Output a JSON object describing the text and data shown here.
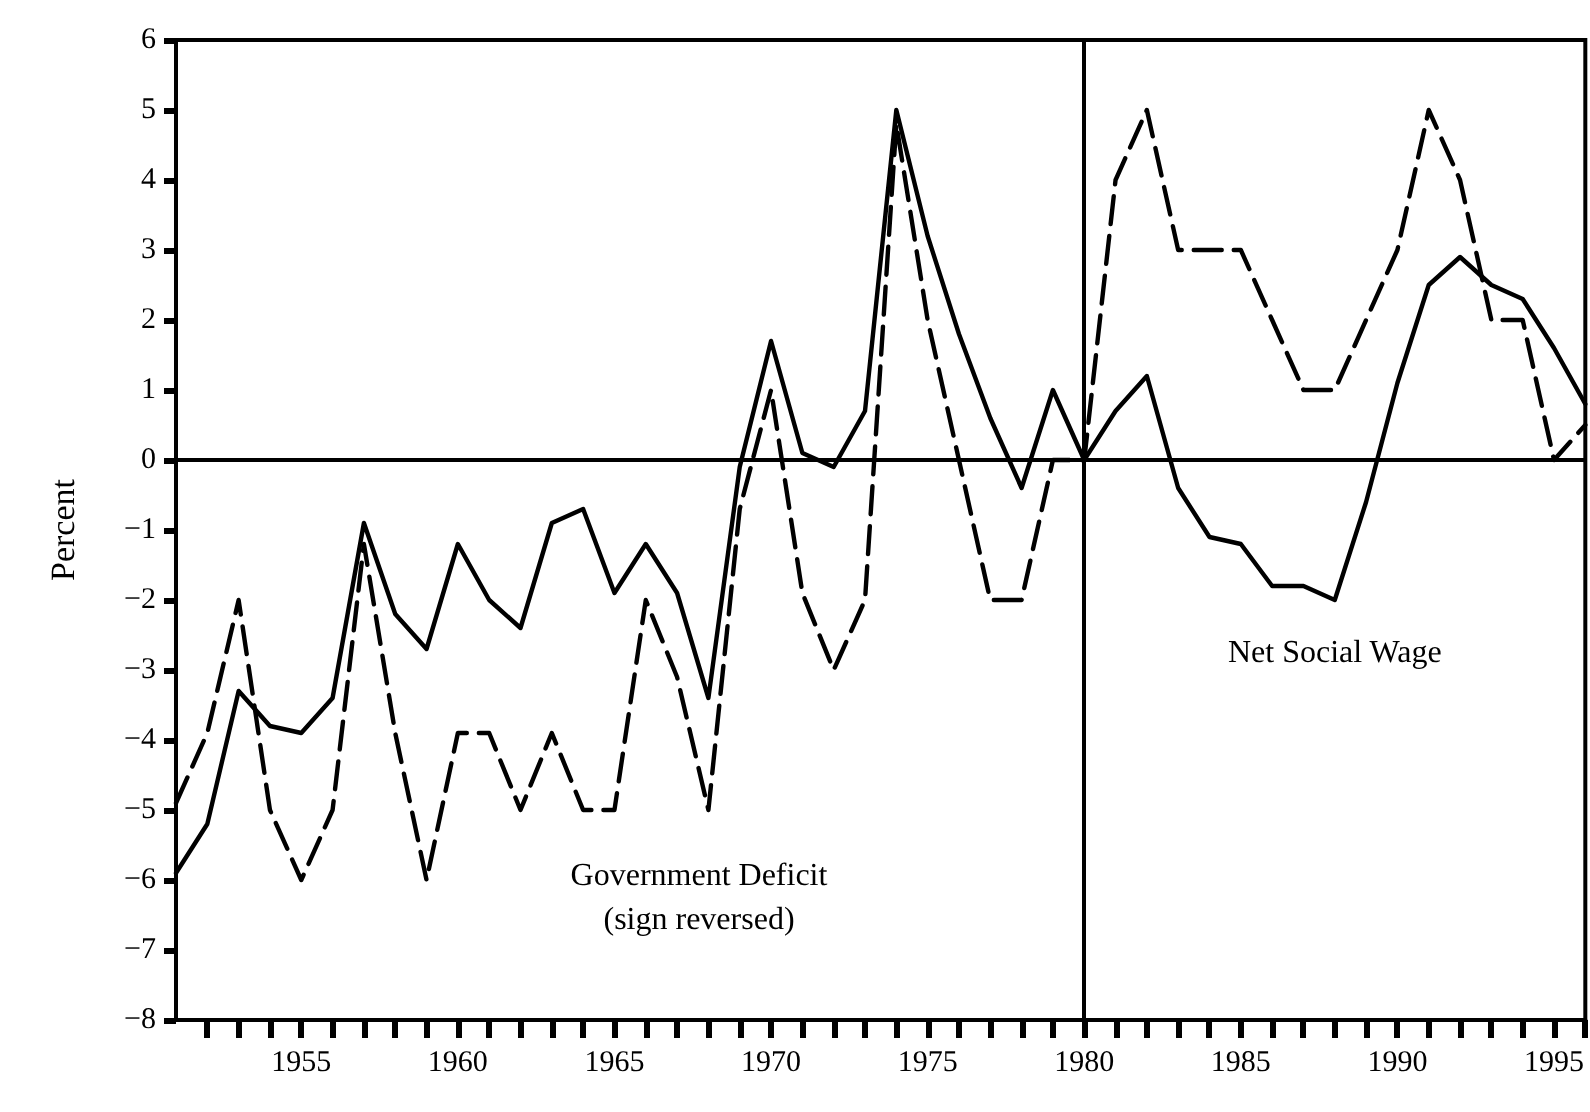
{
  "chart_data": {
    "type": "line",
    "ylabel": "Percent",
    "x": [
      1951,
      1952,
      1953,
      1954,
      1955,
      1956,
      1957,
      1958,
      1959,
      1960,
      1961,
      1962,
      1963,
      1964,
      1965,
      1966,
      1967,
      1968,
      1969,
      1970,
      1971,
      1972,
      1973,
      1974,
      1975,
      1976,
      1977,
      1978,
      1979,
      1980,
      1981,
      1982,
      1983,
      1984,
      1985,
      1986,
      1987,
      1988,
      1989,
      1990,
      1991,
      1992,
      1993,
      1994,
      1995,
      1996
    ],
    "series": [
      {
        "name": "Net Social Wage",
        "color": "#000000",
        "line_style": "solid",
        "values": [
          -5.9,
          -5.2,
          -3.3,
          -3.8,
          -3.9,
          -3.4,
          -0.9,
          -2.2,
          -2.7,
          -1.2,
          -2.0,
          -2.4,
          -0.9,
          -0.7,
          -1.9,
          -1.2,
          -1.9,
          -3.4,
          -0.1,
          1.7,
          0.1,
          -0.1,
          0.7,
          5.0,
          3.2,
          1.8,
          0.6,
          -0.4,
          1.0,
          0.0,
          0.7,
          1.2,
          -0.4,
          -1.1,
          -1.2,
          -1.8,
          -1.8,
          -2.0,
          -0.6,
          1.1,
          2.5,
          2.9,
          2.5,
          2.3,
          1.6,
          0.8
        ]
      },
      {
        "name": "Government Deficit\n(sign reversed)",
        "color": "#000000",
        "line_style": "dashed",
        "values": [
          -4.9,
          -3.9,
          -2.0,
          -5.0,
          -6.0,
          -5.0,
          -1.2,
          -3.9,
          -6.0,
          -3.9,
          -3.9,
          -5.0,
          -3.9,
          -5.0,
          -5.0,
          -2.0,
          -3.1,
          -5.0,
          -0.7,
          1.0,
          -1.9,
          -3.0,
          -2.0,
          4.8,
          2.0,
          0.0,
          -2.0,
          -2.0,
          0.0,
          0.0,
          4.0,
          5.0,
          3.0,
          3.0,
          3.0,
          2.0,
          1.0,
          1.0,
          2.0,
          3.0,
          5.0,
          4.0,
          2.0,
          2.0,
          0.0,
          0.5
        ]
      }
    ],
    "xlim": [
      1951,
      1996
    ],
    "xticks": [
      {
        "value": 1952,
        "label": null
      },
      {
        "value": 1953,
        "label": null
      },
      {
        "value": 1954,
        "label": null
      },
      1955,
      {
        "value": 1956,
        "label": null
      },
      {
        "value": 1957,
        "label": null
      },
      {
        "value": 1958,
        "label": null
      },
      {
        "value": 1959,
        "label": null
      },
      1960,
      {
        "value": 1961,
        "label": null
      },
      {
        "value": 1962,
        "label": null
      },
      {
        "value": 1963,
        "label": null
      },
      {
        "value": 1964,
        "label": null
      },
      1965,
      {
        "value": 1966,
        "label": null
      },
      {
        "value": 1967,
        "label": null
      },
      {
        "value": 1968,
        "label": null
      },
      {
        "value": 1969,
        "label": null
      },
      1970,
      {
        "value": 1971,
        "label": null
      },
      {
        "value": 1972,
        "label": null
      },
      {
        "value": 1973,
        "label": null
      },
      {
        "value": 1974,
        "label": null
      },
      1975,
      {
        "value": 1976,
        "label": null
      },
      {
        "value": 1977,
        "label": null
      },
      {
        "value": 1978,
        "label": null
      },
      {
        "value": 1979,
        "label": null
      },
      1980,
      {
        "value": 1981,
        "label": null
      },
      {
        "value": 1982,
        "label": null
      },
      {
        "value": 1983,
        "label": null
      },
      {
        "value": 1984,
        "label": null
      },
      1985,
      {
        "value": 1986,
        "label": null
      },
      {
        "value": 1987,
        "label": null
      },
      {
        "value": 1988,
        "label": null
      },
      {
        "value": 1989,
        "label": null
      },
      1990,
      {
        "value": 1991,
        "label": null
      },
      {
        "value": 1992,
        "label": null
      },
      {
        "value": 1993,
        "label": null
      },
      {
        "value": 1994,
        "label": null
      },
      1995,
      {
        "value": 1996,
        "label": null
      }
    ],
    "ylim": [
      -8,
      6
    ],
    "yticks": [
      {
        "value": -8,
        "label": "−8"
      },
      {
        "value": -7,
        "label": "−7"
      },
      {
        "value": -6,
        "label": "−6"
      },
      {
        "value": -5,
        "label": "−5"
      },
      {
        "value": -4,
        "label": "−4"
      },
      {
        "value": -3,
        "label": "−3"
      },
      {
        "value": -2,
        "label": "−2"
      },
      {
        "value": -1,
        "label": "−1"
      },
      0,
      1,
      2,
      3,
      4,
      5,
      6
    ],
    "ref_lines": [
      {
        "axis": "y",
        "value": 0,
        "color": "#000000"
      },
      {
        "axis": "x",
        "value": 1980,
        "color": "#000000"
      }
    ],
    "grid": false,
    "legend": false,
    "marker": "none"
  }
}
